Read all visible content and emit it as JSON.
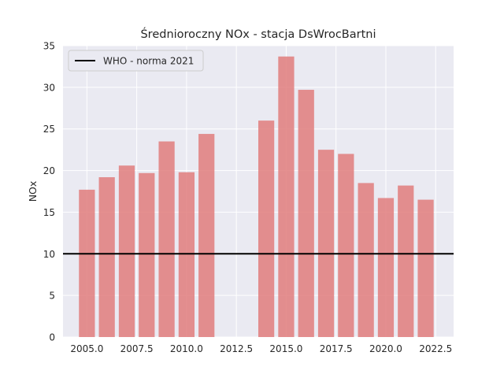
{
  "chart_data": {
    "type": "bar",
    "title": "Średnioroczny NOx - stacja DsWrocBartni",
    "xlabel": "",
    "ylabel": "NOx",
    "x": [
      2005,
      2006,
      2007,
      2008,
      2009,
      2010,
      2011,
      2014,
      2015,
      2016,
      2017,
      2018,
      2019,
      2020,
      2021,
      2022
    ],
    "values": [
      17.7,
      19.2,
      20.6,
      19.7,
      23.5,
      19.8,
      24.4,
      26.0,
      33.7,
      29.7,
      22.5,
      22.0,
      18.5,
      16.7,
      18.2,
      16.5
    ],
    "bar_color": "#e07c7c",
    "xlim": [
      2003.8,
      2023.4
    ],
    "ylim": [
      0,
      35
    ],
    "xticks": [
      "2005.0",
      "2007.5",
      "2010.0",
      "2012.5",
      "2015.0",
      "2017.5",
      "2020.0",
      "2022.5"
    ],
    "yticks": [
      "0",
      "5",
      "10",
      "15",
      "20",
      "25",
      "30",
      "35"
    ],
    "grid": true,
    "reference_line": {
      "y": 10,
      "label": "WHO - norma 2021",
      "color": "#000000"
    },
    "legend": {
      "position": "top-left",
      "entries": [
        "WHO - norma 2021"
      ]
    }
  }
}
